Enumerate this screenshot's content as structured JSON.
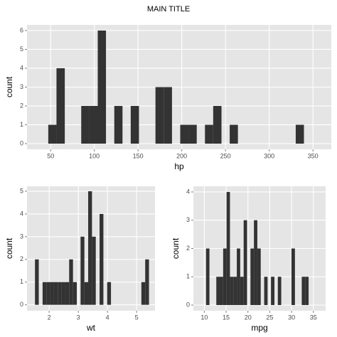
{
  "title": "MAIN TITLE",
  "chart_data": [
    {
      "type": "histogram",
      "x_label": "hp",
      "y_label": "count",
      "color": "#333333",
      "grid": true,
      "bins": [
        47.3,
        56.7,
        66.2,
        75.6,
        85.0,
        94.5,
        103.9,
        113.3,
        122.8,
        132.2,
        141.6,
        151.0,
        160.5,
        169.9,
        179.3,
        188.8,
        198.2,
        207.6,
        217.1,
        226.5,
        235.9,
        245.4,
        254.8,
        264.2,
        273.7,
        283.1,
        292.5,
        302.0,
        311.4,
        320.8,
        330.3,
        339.7
      ],
      "values": [
        1,
        4,
        0,
        0,
        2,
        2,
        6,
        0,
        2,
        0,
        2,
        0,
        0,
        3,
        3,
        0,
        1,
        1,
        0,
        1,
        2,
        0,
        1,
        0,
        0,
        0,
        0,
        0,
        0,
        0,
        1
      ],
      "xlim": [
        23,
        371
      ],
      "xticks": [
        50,
        100,
        150,
        200,
        250,
        300,
        350
      ],
      "ylim": [
        -0.3,
        6.3
      ],
      "yticks": [
        0,
        1,
        2,
        3,
        4,
        5,
        6
      ]
    },
    {
      "type": "histogram",
      "x_label": "wt",
      "y_label": "count",
      "color": "#333333",
      "grid": true,
      "bins": [
        1.513,
        1.643,
        1.774,
        1.904,
        2.035,
        2.165,
        2.295,
        2.426,
        2.556,
        2.686,
        2.817,
        2.947,
        3.077,
        3.208,
        3.338,
        3.469,
        3.599,
        3.729,
        3.86,
        3.99,
        4.12,
        4.251,
        4.381,
        4.512,
        4.642,
        4.772,
        4.903,
        5.033,
        5.163,
        5.294,
        5.424
      ],
      "values": [
        2,
        0,
        1,
        1,
        1,
        1,
        1,
        1,
        1,
        2,
        1,
        0,
        3,
        1,
        5,
        3,
        0,
        4,
        0,
        1,
        0,
        0,
        0,
        0,
        0,
        0,
        0,
        0,
        1,
        2
      ],
      "xlim": [
        1.24,
        5.63
      ],
      "xticks": [
        2,
        3,
        4,
        5
      ],
      "ylim": [
        -0.26,
        5.22
      ],
      "yticks": [
        0,
        1,
        2,
        3,
        4,
        5
      ]
    },
    {
      "type": "histogram",
      "x_label": "mpg",
      "y_label": "count",
      "color": "#333333",
      "grid": true,
      "bins": [
        10.4,
        11.18,
        11.97,
        12.75,
        13.53,
        14.32,
        15.1,
        15.88,
        16.67,
        17.45,
        18.23,
        19.02,
        19.8,
        20.58,
        21.37,
        22.15,
        22.93,
        23.72,
        24.5,
        25.28,
        26.07,
        26.85,
        27.63,
        28.42,
        29.2,
        29.98,
        30.77,
        31.55,
        32.33,
        33.12,
        33.9
      ],
      "values": [
        2,
        0,
        0,
        1,
        1,
        2,
        4,
        1,
        1,
        2,
        1,
        3,
        0,
        2,
        3,
        2,
        0,
        1,
        0,
        1,
        0,
        1,
        0,
        0,
        0,
        2,
        0,
        0,
        1,
        1
      ],
      "xlim": [
        7.5,
        37.8
      ],
      "xticks": [
        10,
        15,
        20,
        25,
        30,
        35
      ],
      "ylim": [
        -0.2,
        4.2
      ],
      "yticks": [
        0,
        1,
        2,
        3,
        4
      ]
    }
  ]
}
